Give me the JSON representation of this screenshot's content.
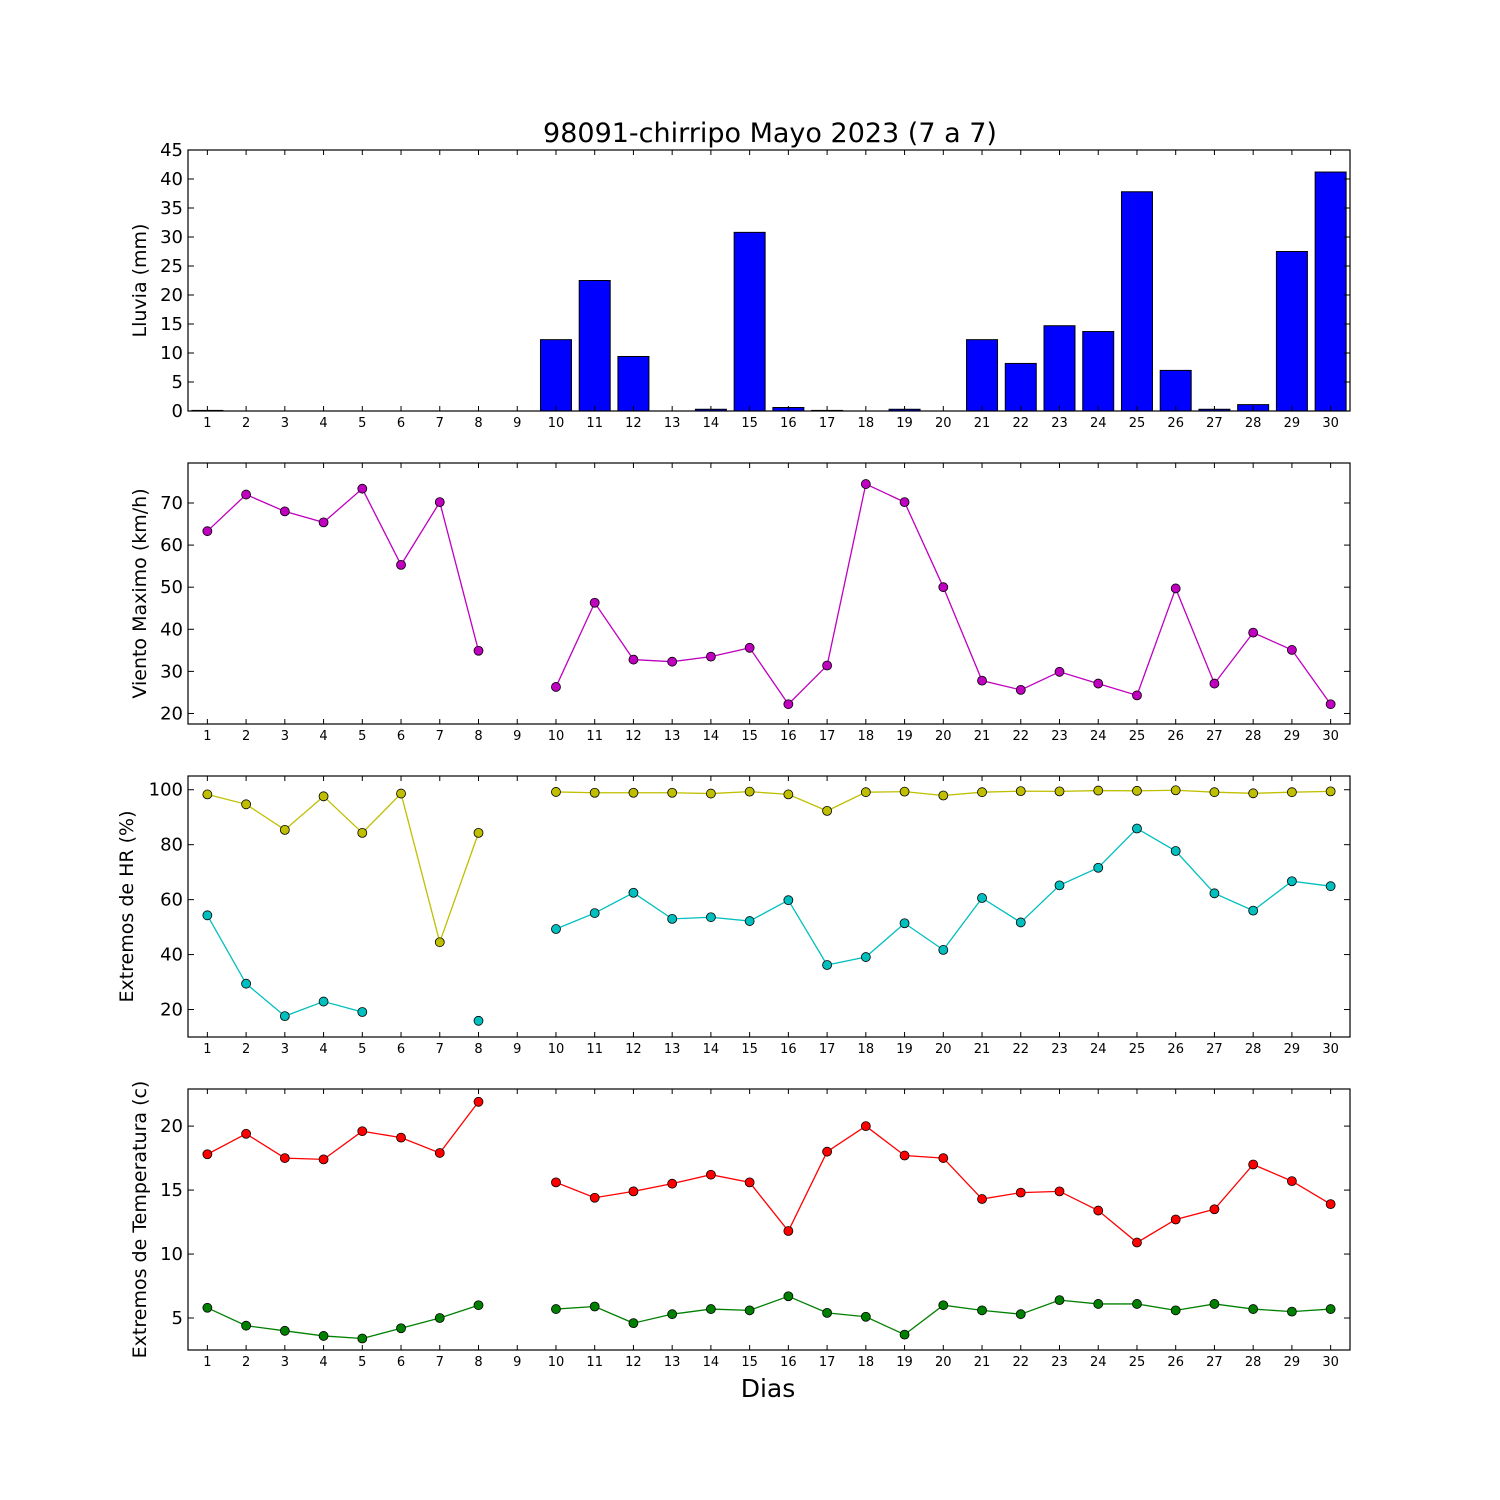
{
  "title": "98091-chirripo Mayo 2023  (7 a 7)",
  "xlabel": "Dias",
  "colors": {
    "rain": "#0000ff",
    "wind": "#bf00bf",
    "hr_max": "#bfbf00",
    "hr_min": "#00bfbf",
    "temp_max": "#ff0000",
    "temp_min": "#008000"
  },
  "chart_data": [
    {
      "type": "bar",
      "ylabel": "Lluvia (mm)",
      "xlim": [
        0.5,
        30.5
      ],
      "ylim": [
        0,
        45
      ],
      "yticks": [
        0,
        5,
        10,
        15,
        20,
        25,
        30,
        35,
        40,
        45
      ],
      "categories": [
        "1",
        "2",
        "3",
        "4",
        "5",
        "6",
        "7",
        "8",
        "9",
        "10",
        "11",
        "12",
        "13",
        "14",
        "15",
        "16",
        "17",
        "18",
        "19",
        "20",
        "21",
        "22",
        "23",
        "24",
        "25",
        "26",
        "27",
        "28",
        "29",
        "30"
      ],
      "x": [
        1,
        2,
        3,
        4,
        5,
        6,
        7,
        8,
        9,
        10,
        11,
        12,
        13,
        14,
        15,
        16,
        17,
        18,
        19,
        20,
        21,
        22,
        23,
        24,
        25,
        26,
        27,
        28,
        29,
        30
      ],
      "series": [
        {
          "values": [
            0.1,
            0,
            0,
            0,
            0,
            0,
            0,
            0,
            0,
            12.3,
            22.5,
            9.4,
            0,
            0.3,
            30.8,
            0.6,
            0.1,
            0,
            0.3,
            0,
            12.3,
            8.2,
            14.7,
            13.7,
            37.8,
            7.0,
            0.3,
            1.1,
            27.5,
            41.2
          ]
        }
      ]
    },
    {
      "type": "line",
      "ylabel": "Viento Maximo (km/h)",
      "xlim": [
        0.5,
        30.5
      ],
      "ylim": [
        17.5,
        79.5
      ],
      "yticks": [
        20,
        30,
        40,
        50,
        60,
        70
      ],
      "categories": [
        "1",
        "2",
        "3",
        "4",
        "5",
        "6",
        "7",
        "8",
        "9",
        "10",
        "11",
        "12",
        "13",
        "14",
        "15",
        "16",
        "17",
        "18",
        "19",
        "20",
        "21",
        "22",
        "23",
        "24",
        "25",
        "26",
        "27",
        "28",
        "29",
        "30"
      ],
      "x": [
        1,
        2,
        3,
        4,
        5,
        6,
        7,
        8,
        9,
        10,
        11,
        12,
        13,
        14,
        15,
        16,
        17,
        18,
        19,
        20,
        21,
        22,
        23,
        24,
        25,
        26,
        27,
        28,
        29,
        30
      ],
      "series": [
        {
          "values": [
            63.3,
            72,
            68,
            65.4,
            73.4,
            55.3,
            70.2,
            34.9,
            null,
            26.3,
            46.3,
            32.8,
            32.3,
            33.5,
            35.6,
            22.2,
            31.4,
            74.5,
            70.2,
            50,
            27.8,
            25.6,
            29.9,
            27.1,
            24.3,
            49.7,
            27.1,
            39.2,
            35.1,
            22.2
          ]
        }
      ]
    },
    {
      "type": "line",
      "ylabel": "Extremos de HR (%)",
      "xlim": [
        0.5,
        30.5
      ],
      "ylim": [
        10,
        105
      ],
      "yticks": [
        20,
        40,
        60,
        80,
        100
      ],
      "categories": [
        "1",
        "2",
        "3",
        "4",
        "5",
        "6",
        "7",
        "8",
        "9",
        "10",
        "11",
        "12",
        "13",
        "14",
        "15",
        "16",
        "17",
        "18",
        "19",
        "20",
        "21",
        "22",
        "23",
        "24",
        "25",
        "26",
        "27",
        "28",
        "29",
        "30"
      ],
      "x": [
        1,
        2,
        3,
        4,
        5,
        6,
        7,
        8,
        9,
        10,
        11,
        12,
        13,
        14,
        15,
        16,
        17,
        18,
        19,
        20,
        21,
        22,
        23,
        24,
        25,
        26,
        27,
        28,
        29,
        30
      ],
      "series": [
        {
          "values": [
            98.3,
            94.7,
            85.4,
            97.6,
            84.3,
            98.6,
            44.5,
            84.3,
            null,
            99.2,
            98.9,
            98.9,
            98.9,
            98.6,
            99.3,
            98.3,
            92.3,
            99.1,
            99.3,
            97.9,
            99.1,
            99.5,
            99.4,
            99.7,
            99.6,
            99.8,
            99.1,
            98.7,
            99.1,
            99.4
          ]
        },
        {
          "values": [
            54.3,
            29.4,
            17.6,
            22.9,
            19.1,
            null,
            null,
            15.9,
            null,
            49.3,
            55.1,
            62.5,
            53,
            53.6,
            52.2,
            59.8,
            36.2,
            39.1,
            51.4,
            41.7,
            60.6,
            51.7,
            65.2,
            71.6,
            85.9,
            77.7,
            62.3,
            56,
            66.7,
            64.9
          ]
        }
      ]
    },
    {
      "type": "line",
      "ylabel": "Extremos de Temperatura (c)",
      "xlabel": "Dias",
      "xlim": [
        0.5,
        30.5
      ],
      "ylim": [
        2.5,
        22.9
      ],
      "yticks": [
        5,
        10,
        15,
        20
      ],
      "categories": [
        "1",
        "2",
        "3",
        "4",
        "5",
        "6",
        "7",
        "8",
        "9",
        "10",
        "11",
        "12",
        "13",
        "14",
        "15",
        "16",
        "17",
        "18",
        "19",
        "20",
        "21",
        "22",
        "23",
        "24",
        "25",
        "26",
        "27",
        "28",
        "29",
        "30"
      ],
      "x": [
        1,
        2,
        3,
        4,
        5,
        6,
        7,
        8,
        9,
        10,
        11,
        12,
        13,
        14,
        15,
        16,
        17,
        18,
        19,
        20,
        21,
        22,
        23,
        24,
        25,
        26,
        27,
        28,
        29,
        30
      ],
      "series": [
        {
          "values": [
            17.8,
            19.4,
            17.5,
            17.4,
            19.6,
            19.1,
            17.9,
            21.9,
            null,
            15.6,
            14.4,
            14.9,
            15.5,
            16.2,
            15.6,
            11.8,
            18,
            20,
            17.7,
            17.5,
            14.3,
            14.8,
            14.9,
            13.4,
            10.9,
            12.7,
            13.5,
            17,
            15.7,
            13.9
          ]
        },
        {
          "values": [
            5.8,
            4.4,
            4,
            3.6,
            3.4,
            4.2,
            5,
            6,
            null,
            5.7,
            5.9,
            4.6,
            5.3,
            5.7,
            5.6,
            6.7,
            5.4,
            5.1,
            3.7,
            6,
            5.6,
            5.3,
            6.4,
            6.1,
            6.1,
            5.6,
            6.1,
            5.7,
            5.5,
            5.7
          ]
        }
      ]
    }
  ]
}
